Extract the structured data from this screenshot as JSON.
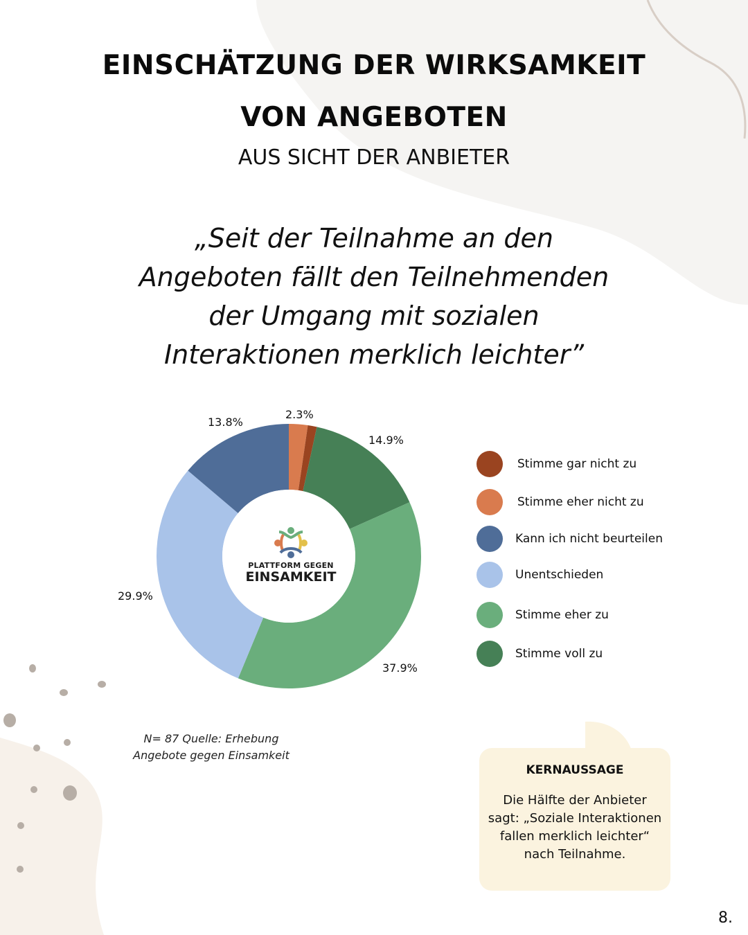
{
  "header": {
    "title_line1": "EINSCHÄTZUNG DER WIRKSAMKEIT",
    "title_line2": "VON ANGEBOTEN",
    "subtitle": "AUS SICHT DER ANBIETER"
  },
  "quote": {
    "line1": "„Seit der Teilnahme an den",
    "line2": "Angeboten fällt den Teilnehmenden",
    "line3": "der Umgang mit sozialen",
    "line4": "Interaktionen merklich leichter”"
  },
  "chart_data": {
    "type": "donut",
    "categories": [
      "Stimme gar nicht zu",
      "Stimme eher nicht zu",
      "Kann ich nicht beurteilen",
      "Unentschieden",
      "Stimme eher zu",
      "Stimme voll zu"
    ],
    "values": [
      1.1,
      2.3,
      13.8,
      29.9,
      37.9,
      14.9
    ],
    "unit": "%",
    "colors": [
      "#9a4420",
      "#d97b4e",
      "#4f6d98",
      "#a9c3e9",
      "#6aae7c",
      "#468056"
    ],
    "data_labels": {
      "p_eher_nicht": "2.3%",
      "p_voll": "14.9%",
      "p_eher": "37.9%",
      "p_unent": "29.9%",
      "p_kann": "13.8%"
    },
    "legend": "right"
  },
  "logo": {
    "line1": "PLATTFORM GEGEN",
    "line2": "EINSAMKEIT"
  },
  "source": {
    "line1": "N= 87 Quelle: Erhebung",
    "line2": "Angebote gegen Einsamkeit"
  },
  "key_message": {
    "title": "KERNAUSSAGE",
    "line1": "Die Hälfte der Anbieter",
    "line2": "sagt: „Soziale Interaktionen",
    "line3": "fallen merklich leichter“",
    "line4": "nach Teilnahme."
  },
  "page_number": "8."
}
